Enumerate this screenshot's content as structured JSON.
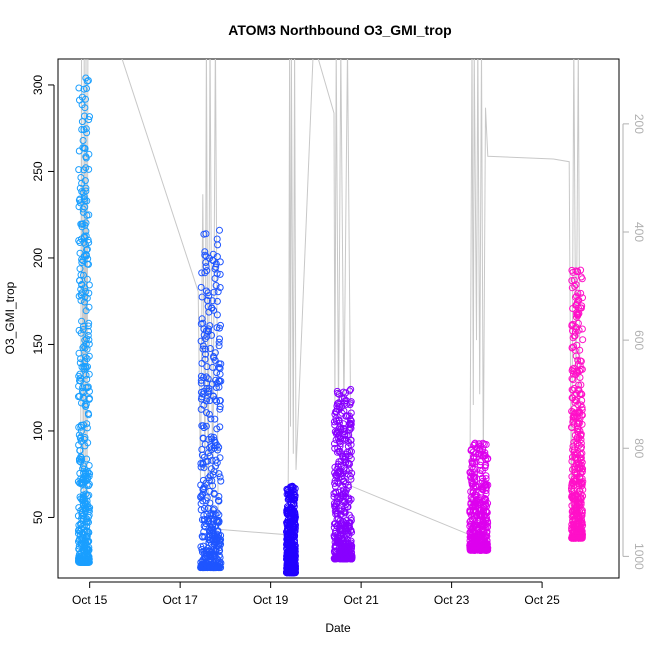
{
  "chart_data": {
    "type": "scatter",
    "title": "ATOM3 Northbound O3_GMI_trop",
    "xlabel": "Date",
    "ylabel": "O3_GMI_trop",
    "x_ticks": [
      "Oct 15",
      "Oct 17",
      "Oct 19",
      "Oct 21",
      "Oct 23",
      "Oct 25"
    ],
    "x_tick_days": [
      15,
      17,
      19,
      21,
      23,
      25
    ],
    "xlim_days": [
      14.3,
      26.7
    ],
    "ylim": [
      15,
      315
    ],
    "y_ticks": [
      50,
      100,
      150,
      200,
      250,
      300
    ],
    "secondary_axis": {
      "label": "",
      "ticks": [
        200,
        400,
        600,
        800,
        1000
      ],
      "lim": [
        80,
        1040
      ],
      "reversed": true,
      "color": "#b0b0b0"
    },
    "grid": false,
    "legend": "none",
    "series": [
      {
        "color": "#1a9fff",
        "flight_date": "Oct 14-15",
        "x_range_days": [
          14.75,
          15.0
        ],
        "y_min": 24,
        "y_max": 304
      },
      {
        "color": "#1f55ff",
        "flight_date": "Oct 17",
        "x_range_days": [
          17.45,
          17.9
        ],
        "y_min": 21,
        "y_max": 216
      },
      {
        "color": "#2200ff",
        "flight_date": "Oct 19",
        "x_range_days": [
          19.35,
          19.55
        ],
        "y_min": 18,
        "y_max": 68
      },
      {
        "color": "#8800ff",
        "flight_date": "Oct 20-21",
        "x_range_days": [
          20.4,
          20.8
        ],
        "y_min": 26,
        "y_max": 124
      },
      {
        "color": "#dd00ee",
        "flight_date": "Oct 23",
        "x_range_days": [
          23.4,
          23.8
        ],
        "y_min": 31,
        "y_max": 93
      },
      {
        "color": "#ff10c8",
        "flight_date": "Oct 25",
        "x_range_days": [
          25.65,
          25.9
        ],
        "y_min": 38,
        "y_max": 193
      }
    ],
    "pressure_trace_color": "#c8c8c8"
  }
}
